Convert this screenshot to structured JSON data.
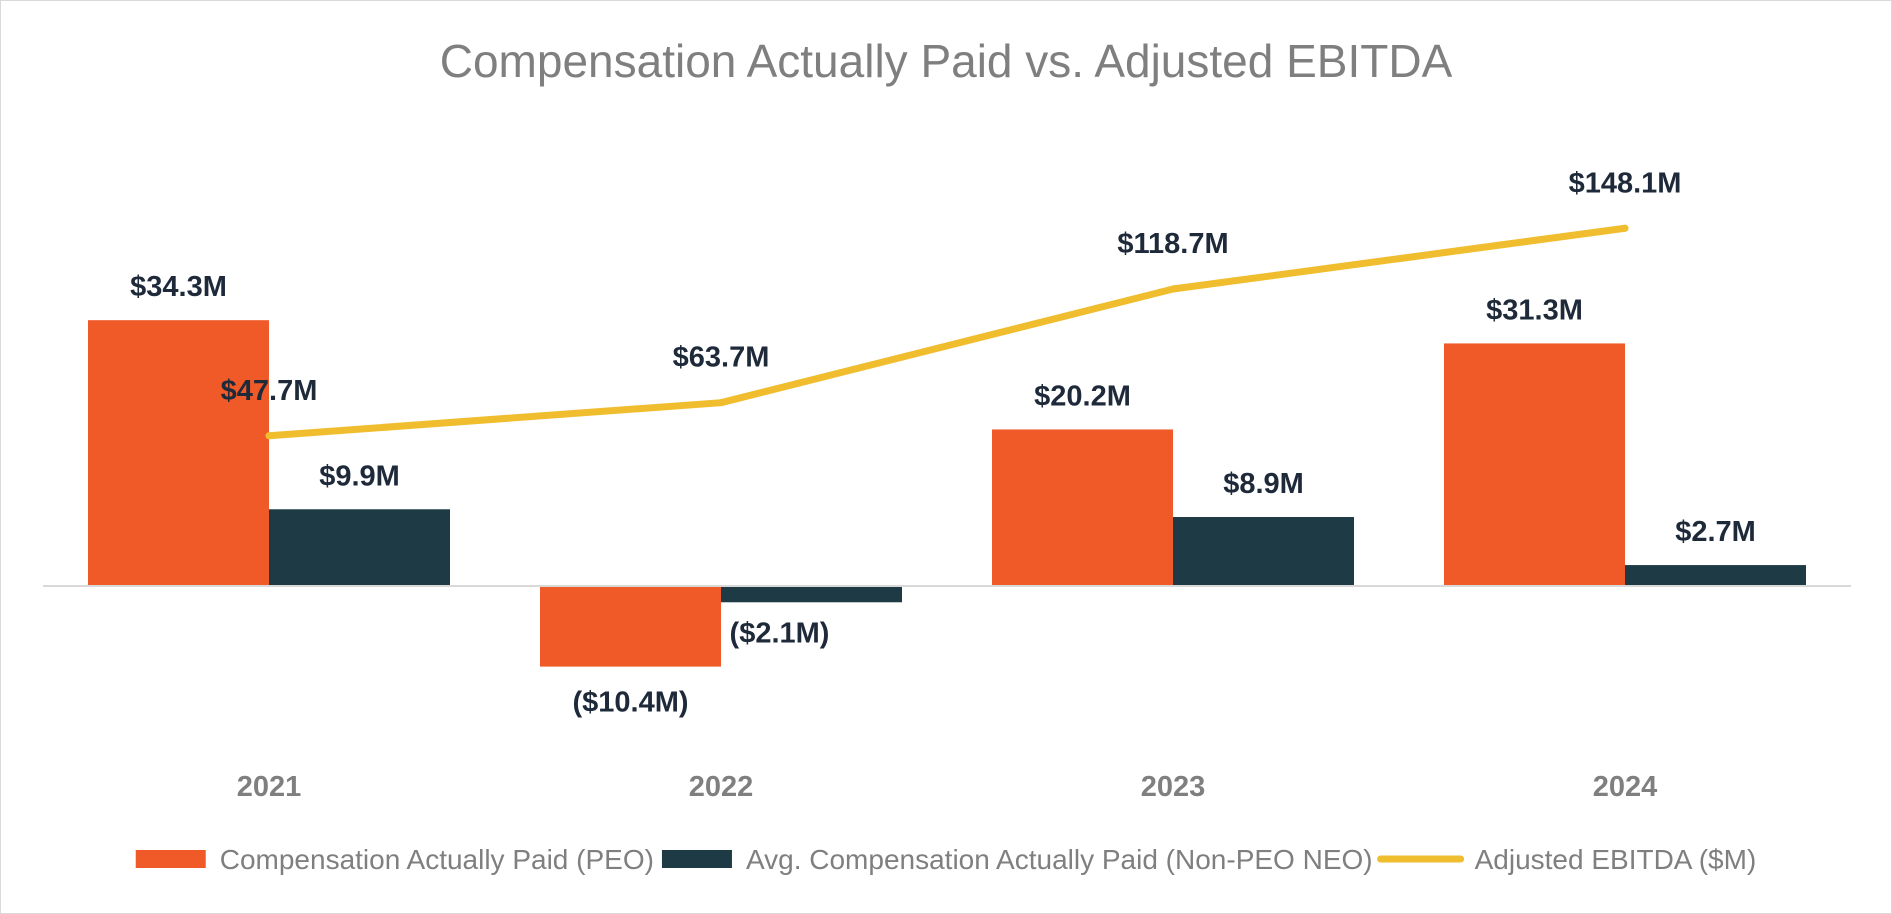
{
  "chart_data": {
    "type": "bar",
    "title": "Compensation Actually Paid vs. Adjusted EBITDA",
    "categories": [
      "2021",
      "2022",
      "2023",
      "2024"
    ],
    "series": [
      {
        "name": "Compensation Actually Paid (PEO)",
        "kind": "bar",
        "color": "#f05a28",
        "values": [
          34.3,
          -10.4,
          20.2,
          31.3
        ],
        "labels": [
          "$34.3M",
          "($10.4M)",
          "$20.2M",
          "$31.3M"
        ]
      },
      {
        "name": "Avg. Compensation Actually Paid (Non-PEO NEO)",
        "kind": "bar",
        "color": "#1e3a44",
        "values": [
          9.9,
          -2.1,
          8.9,
          2.7
        ],
        "labels": [
          "$9.9M",
          "($2.1M)",
          "$8.9M",
          "$2.7M"
        ]
      },
      {
        "name": "Adjusted EBITDA ($M)",
        "kind": "line",
        "axis": "secondary",
        "color": "#f0bd2f",
        "values": [
          47.7,
          63.7,
          118.7,
          148.1
        ],
        "labels": [
          "$47.7M",
          "$63.7M",
          "$118.7M",
          "$148.1M"
        ]
      }
    ],
    "primary_axis_range": [
      -20,
      60
    ],
    "secondary_axis_range": [
      -100,
      200
    ],
    "xlabel": "",
    "ylabel": "",
    "grid": false,
    "axes_visible": false,
    "legend_position": "bottom"
  }
}
